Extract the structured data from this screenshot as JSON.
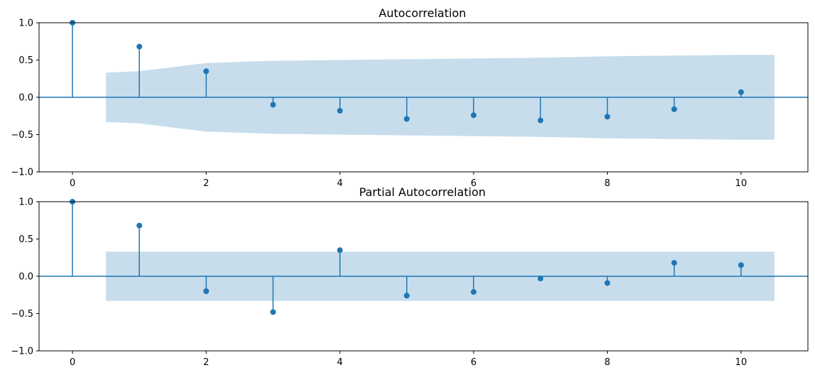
{
  "chart_data": [
    {
      "type": "stem",
      "title": "Autocorrelation",
      "xlim": [
        -0.5,
        11.0
      ],
      "ylim": [
        -1.0,
        1.0
      ],
      "xticks": [
        "0",
        "2",
        "4",
        "6",
        "8",
        "10"
      ],
      "xtick_values": [
        0,
        2,
        4,
        6,
        8,
        10
      ],
      "yticks": [
        "−1.0",
        "−0.5",
        "0.0",
        "0.5",
        "1.0"
      ],
      "ytick_values": [
        -1.0,
        -0.5,
        0.0,
        0.5,
        1.0
      ],
      "lags": [
        0,
        1,
        2,
        3,
        4,
        5,
        6,
        7,
        8,
        9,
        10
      ],
      "values": [
        1.0,
        0.68,
        0.35,
        -0.1,
        -0.18,
        -0.29,
        -0.24,
        -0.31,
        -0.26,
        -0.16,
        0.07
      ],
      "confint": {
        "lags": [
          0.5,
          1,
          2,
          3,
          4,
          5,
          6,
          7,
          8,
          9,
          10,
          10.5
        ],
        "upper": [
          0.33,
          0.35,
          0.46,
          0.49,
          0.5,
          0.51,
          0.52,
          0.53,
          0.55,
          0.56,
          0.57,
          0.57
        ]
      },
      "color": "#1f77b4"
    },
    {
      "type": "stem",
      "title": "Partial Autocorrelation",
      "xlim": [
        -0.5,
        11.0
      ],
      "ylim": [
        -1.0,
        1.0
      ],
      "xticks": [
        "0",
        "2",
        "4",
        "6",
        "8",
        "10"
      ],
      "xtick_values": [
        0,
        2,
        4,
        6,
        8,
        10
      ],
      "yticks": [
        "−1.0",
        "−0.5",
        "0.0",
        "0.5",
        "1.0"
      ],
      "ytick_values": [
        -1.0,
        -0.5,
        0.0,
        0.5,
        1.0
      ],
      "lags": [
        0,
        1,
        2,
        3,
        4,
        5,
        6,
        7,
        8,
        9,
        10
      ],
      "values": [
        1.0,
        0.68,
        -0.2,
        -0.48,
        0.35,
        -0.26,
        -0.21,
        -0.03,
        -0.09,
        0.18,
        0.15
      ],
      "confint": {
        "lags": [
          0.5,
          10.5
        ],
        "upper": [
          0.33,
          0.33
        ]
      },
      "color": "#1f77b4"
    }
  ]
}
